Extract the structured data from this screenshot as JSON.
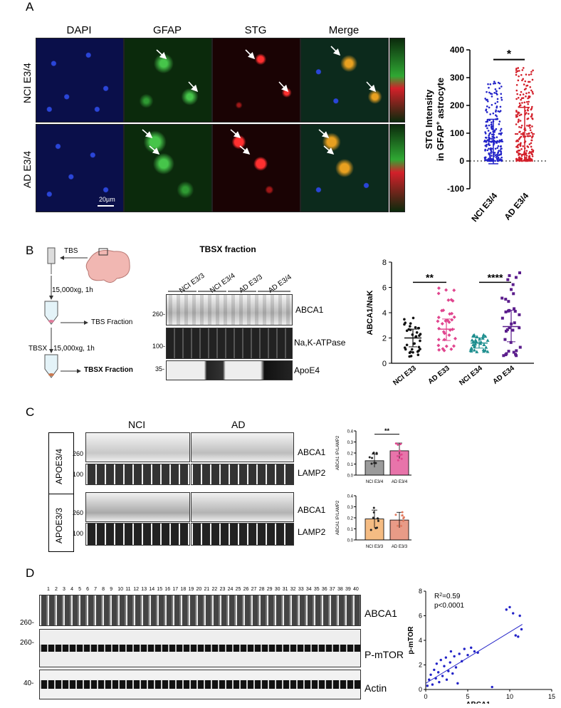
{
  "panel_A": {
    "letter": "A",
    "stains": [
      "DAPI",
      "GFAP",
      "STG",
      "Merge"
    ],
    "rows": [
      "NCI E3/4",
      "AD E3/4"
    ],
    "scale_bar": "20µm",
    "colors": {
      "dapi": "#1a2ea0",
      "gfap": "#2fa833",
      "stg": "#d3202a",
      "ci": "#2323c8"
    }
  },
  "panel_B": {
    "letter": "B",
    "workflow": {
      "tbs": "TBS",
      "spin1": "15,000xg, 1h",
      "tbs_fraction": "TBS Fraction",
      "tbsx": "TBSX",
      "spin2": "15,000xg, 1h",
      "tbsx_fraction": "TBSX Fraction"
    },
    "blot_title": "TBSX fraction",
    "lanes": [
      "NCI E3/3",
      "NCI E3/4",
      "AD E3/3",
      "AD E3/4"
    ],
    "bands": [
      {
        "name": "ABCA1",
        "mw": "260-"
      },
      {
        "name": "Na,K-ATPase",
        "mw": "100-"
      },
      {
        "name": "ApoE4",
        "mw": "35-"
      }
    ]
  },
  "panel_C": {
    "letter": "C",
    "groups": [
      "NCI",
      "AD"
    ],
    "genotypes": [
      "APOE3/4",
      "APOE3/3"
    ],
    "bands": [
      "ABCA1",
      "LAMP2"
    ],
    "mws": [
      "260",
      "100"
    ]
  },
  "panel_D": {
    "letter": "D",
    "lane_numbers": [
      "1",
      "2",
      "3",
      "4",
      "5",
      "6",
      "7",
      "8",
      "9",
      "10",
      "11",
      "12",
      "13",
      "14",
      "15",
      "16",
      "17",
      "18",
      "19",
      "20",
      "21",
      "22",
      "23",
      "24",
      "25",
      "26",
      "27",
      "28",
      "29",
      "30",
      "31",
      "32",
      "33",
      "34",
      "35",
      "36",
      "37",
      "38",
      "39",
      "40"
    ],
    "bands": [
      {
        "name": "ABCA1",
        "mw": "260-"
      },
      {
        "name": "P-mTOR",
        "mw": "260-"
      },
      {
        "name": "Actin",
        "mw": "40-"
      }
    ]
  },
  "chart_data": [
    {
      "type": "scatter",
      "id": "A_stg",
      "ylabel_line1": "STG Intensity",
      "ylabel_line2_pre": "in GFAP",
      "ylabel_sup": "+",
      "ylabel_line2_post": " astrocyte",
      "categories": [
        "NCI E3/4",
        "AD E3/4"
      ],
      "ylim": [
        -100,
        400
      ],
      "yticks": [
        "400",
        "300",
        "200",
        "100",
        "0",
        "-100"
      ],
      "significance": "*",
      "series": [
        {
          "name": "NCI E3/4",
          "color": "#2323c8",
          "mean": 70,
          "sd_low": -10,
          "sd_high": 150
        },
        {
          "name": "AD E3/4",
          "color": "#d3202a",
          "mean": 97,
          "sd_low": 0,
          "sd_high": 193
        }
      ]
    },
    {
      "type": "scatter",
      "id": "B_abca1_nak",
      "ylabel": "ABCA1/NaK",
      "categories": [
        "NCI E33",
        "AD E33",
        "NCI E34",
        "AD E34"
      ],
      "ylim": [
        0,
        8
      ],
      "yticks": [
        "8",
        "6",
        "4",
        "2",
        "0"
      ],
      "significance": [
        "**",
        "****"
      ],
      "series": [
        {
          "name": "NCI E33",
          "color": "#111111",
          "mean": 2.0,
          "sd_low": 1.3,
          "sd_high": 2.7
        },
        {
          "name": "AD E33",
          "color": "#e0458e",
          "mean": 2.7,
          "sd_low": 1.8,
          "sd_high": 3.5
        },
        {
          "name": "NCI E34",
          "color": "#1f8f8f",
          "mean": 1.6,
          "sd_low": 1.2,
          "sd_high": 2.0
        },
        {
          "name": "AD E34",
          "color": "#5b1d8c",
          "mean": 2.9,
          "sd_low": 1.7,
          "sd_high": 4.2
        }
      ]
    },
    {
      "type": "bar",
      "id": "C_apoe34",
      "ylabel": "ABCA1 IP/LAMP2",
      "categories": [
        "NCI E3/4",
        "AD E3/4"
      ],
      "values": [
        0.13,
        0.22
      ],
      "errors": [
        0.06,
        0.07
      ],
      "colors": [
        "#7a7a7a",
        "#e0458e"
      ],
      "ylim": [
        0,
        0.4
      ],
      "yticks": [
        "0.4",
        "0.3",
        "0.2",
        "0.1",
        "0.0"
      ],
      "significance": "**"
    },
    {
      "type": "bar",
      "id": "C_apoe33",
      "ylabel": "ABCA1 IP/LAMP2",
      "categories": [
        "NCI E3/3",
        "AD E3/3"
      ],
      "values": [
        0.19,
        0.18
      ],
      "errors": [
        0.08,
        0.07
      ],
      "colors": [
        "#f2a65a",
        "#e07a5f"
      ],
      "ylim": [
        0,
        0.4
      ],
      "yticks": [
        "0.4",
        "0.3",
        "0.2",
        "0.1",
        "0.0"
      ]
    },
    {
      "type": "scatter",
      "id": "D_correlation",
      "xlabel": "ABCA1",
      "ylabel": "p-mTOR",
      "xlim": [
        0,
        15
      ],
      "ylim": [
        0,
        8
      ],
      "xticks": [
        "0",
        "5",
        "10",
        "15"
      ],
      "yticks": [
        "8",
        "6",
        "4",
        "2",
        "0"
      ],
      "r2_label": "R",
      "r2_sup": "2",
      "r2_value": "=0.59",
      "p_label": "p<0.0001",
      "fit": {
        "x": [
          0,
          11.5
        ],
        "y": [
          0.5,
          5.3
        ]
      },
      "points": [
        [
          0.2,
          0.3
        ],
        [
          0.4,
          0.8
        ],
        [
          0.6,
          1.2
        ],
        [
          0.8,
          0.4
        ],
        [
          1,
          1.6
        ],
        [
          1.2,
          0.9
        ],
        [
          1.3,
          2.1
        ],
        [
          1.5,
          1.4
        ],
        [
          1.6,
          0.6
        ],
        [
          1.8,
          2.4
        ],
        [
          2,
          1.1
        ],
        [
          2.2,
          1.9
        ],
        [
          2.4,
          2.6
        ],
        [
          2.5,
          0.8
        ],
        [
          2.7,
          1.5
        ],
        [
          2.9,
          2.2
        ],
        [
          3,
          3.1
        ],
        [
          3.2,
          1.3
        ],
        [
          3.4,
          2.7
        ],
        [
          3.6,
          1.8
        ],
        [
          3.8,
          0.5
        ],
        [
          4,
          2.9
        ],
        [
          4.3,
          2.3
        ],
        [
          4.6,
          3.3
        ],
        [
          5,
          2.8
        ],
        [
          5.4,
          3.4
        ],
        [
          5.8,
          3.1
        ],
        [
          6.2,
          3.0
        ],
        [
          7.9,
          0.2
        ],
        [
          9.6,
          6.5
        ],
        [
          10,
          6.7
        ],
        [
          10.4,
          6.2
        ],
        [
          10.7,
          4.4
        ],
        [
          11.2,
          6.0
        ],
        [
          11.4,
          4.9
        ],
        [
          11,
          4.3
        ]
      ],
      "point_color": "#2323c8"
    }
  ]
}
